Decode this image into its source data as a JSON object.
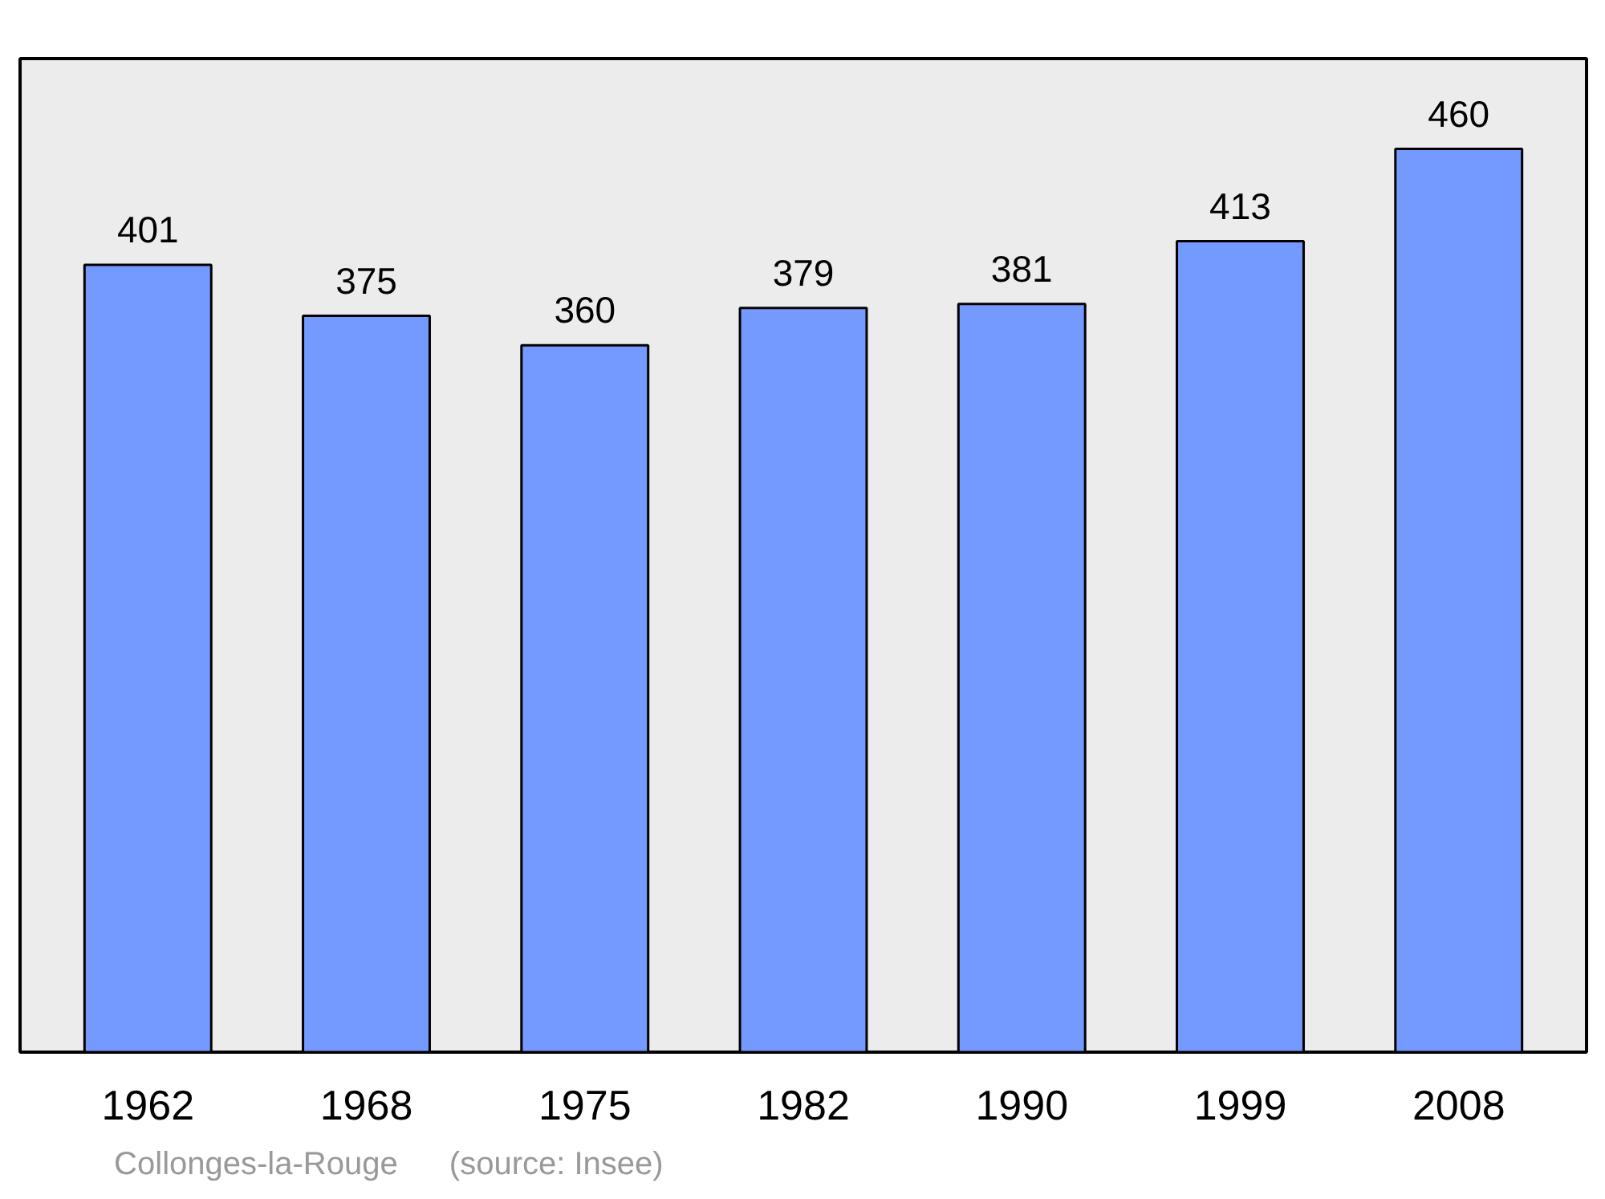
{
  "chart_data": {
    "type": "bar",
    "categories": [
      "1962",
      "1968",
      "1975",
      "1982",
      "1990",
      "1999",
      "2008"
    ],
    "values": [
      401,
      375,
      360,
      379,
      381,
      413,
      460
    ],
    "color": "#7499ff",
    "data_labels": true,
    "ylim": [
      0,
      506
    ],
    "grid": false,
    "tick_labels": "x",
    "annotations": [
      "Collonges-la-Rouge",
      "(source: Insee)"
    ]
  }
}
